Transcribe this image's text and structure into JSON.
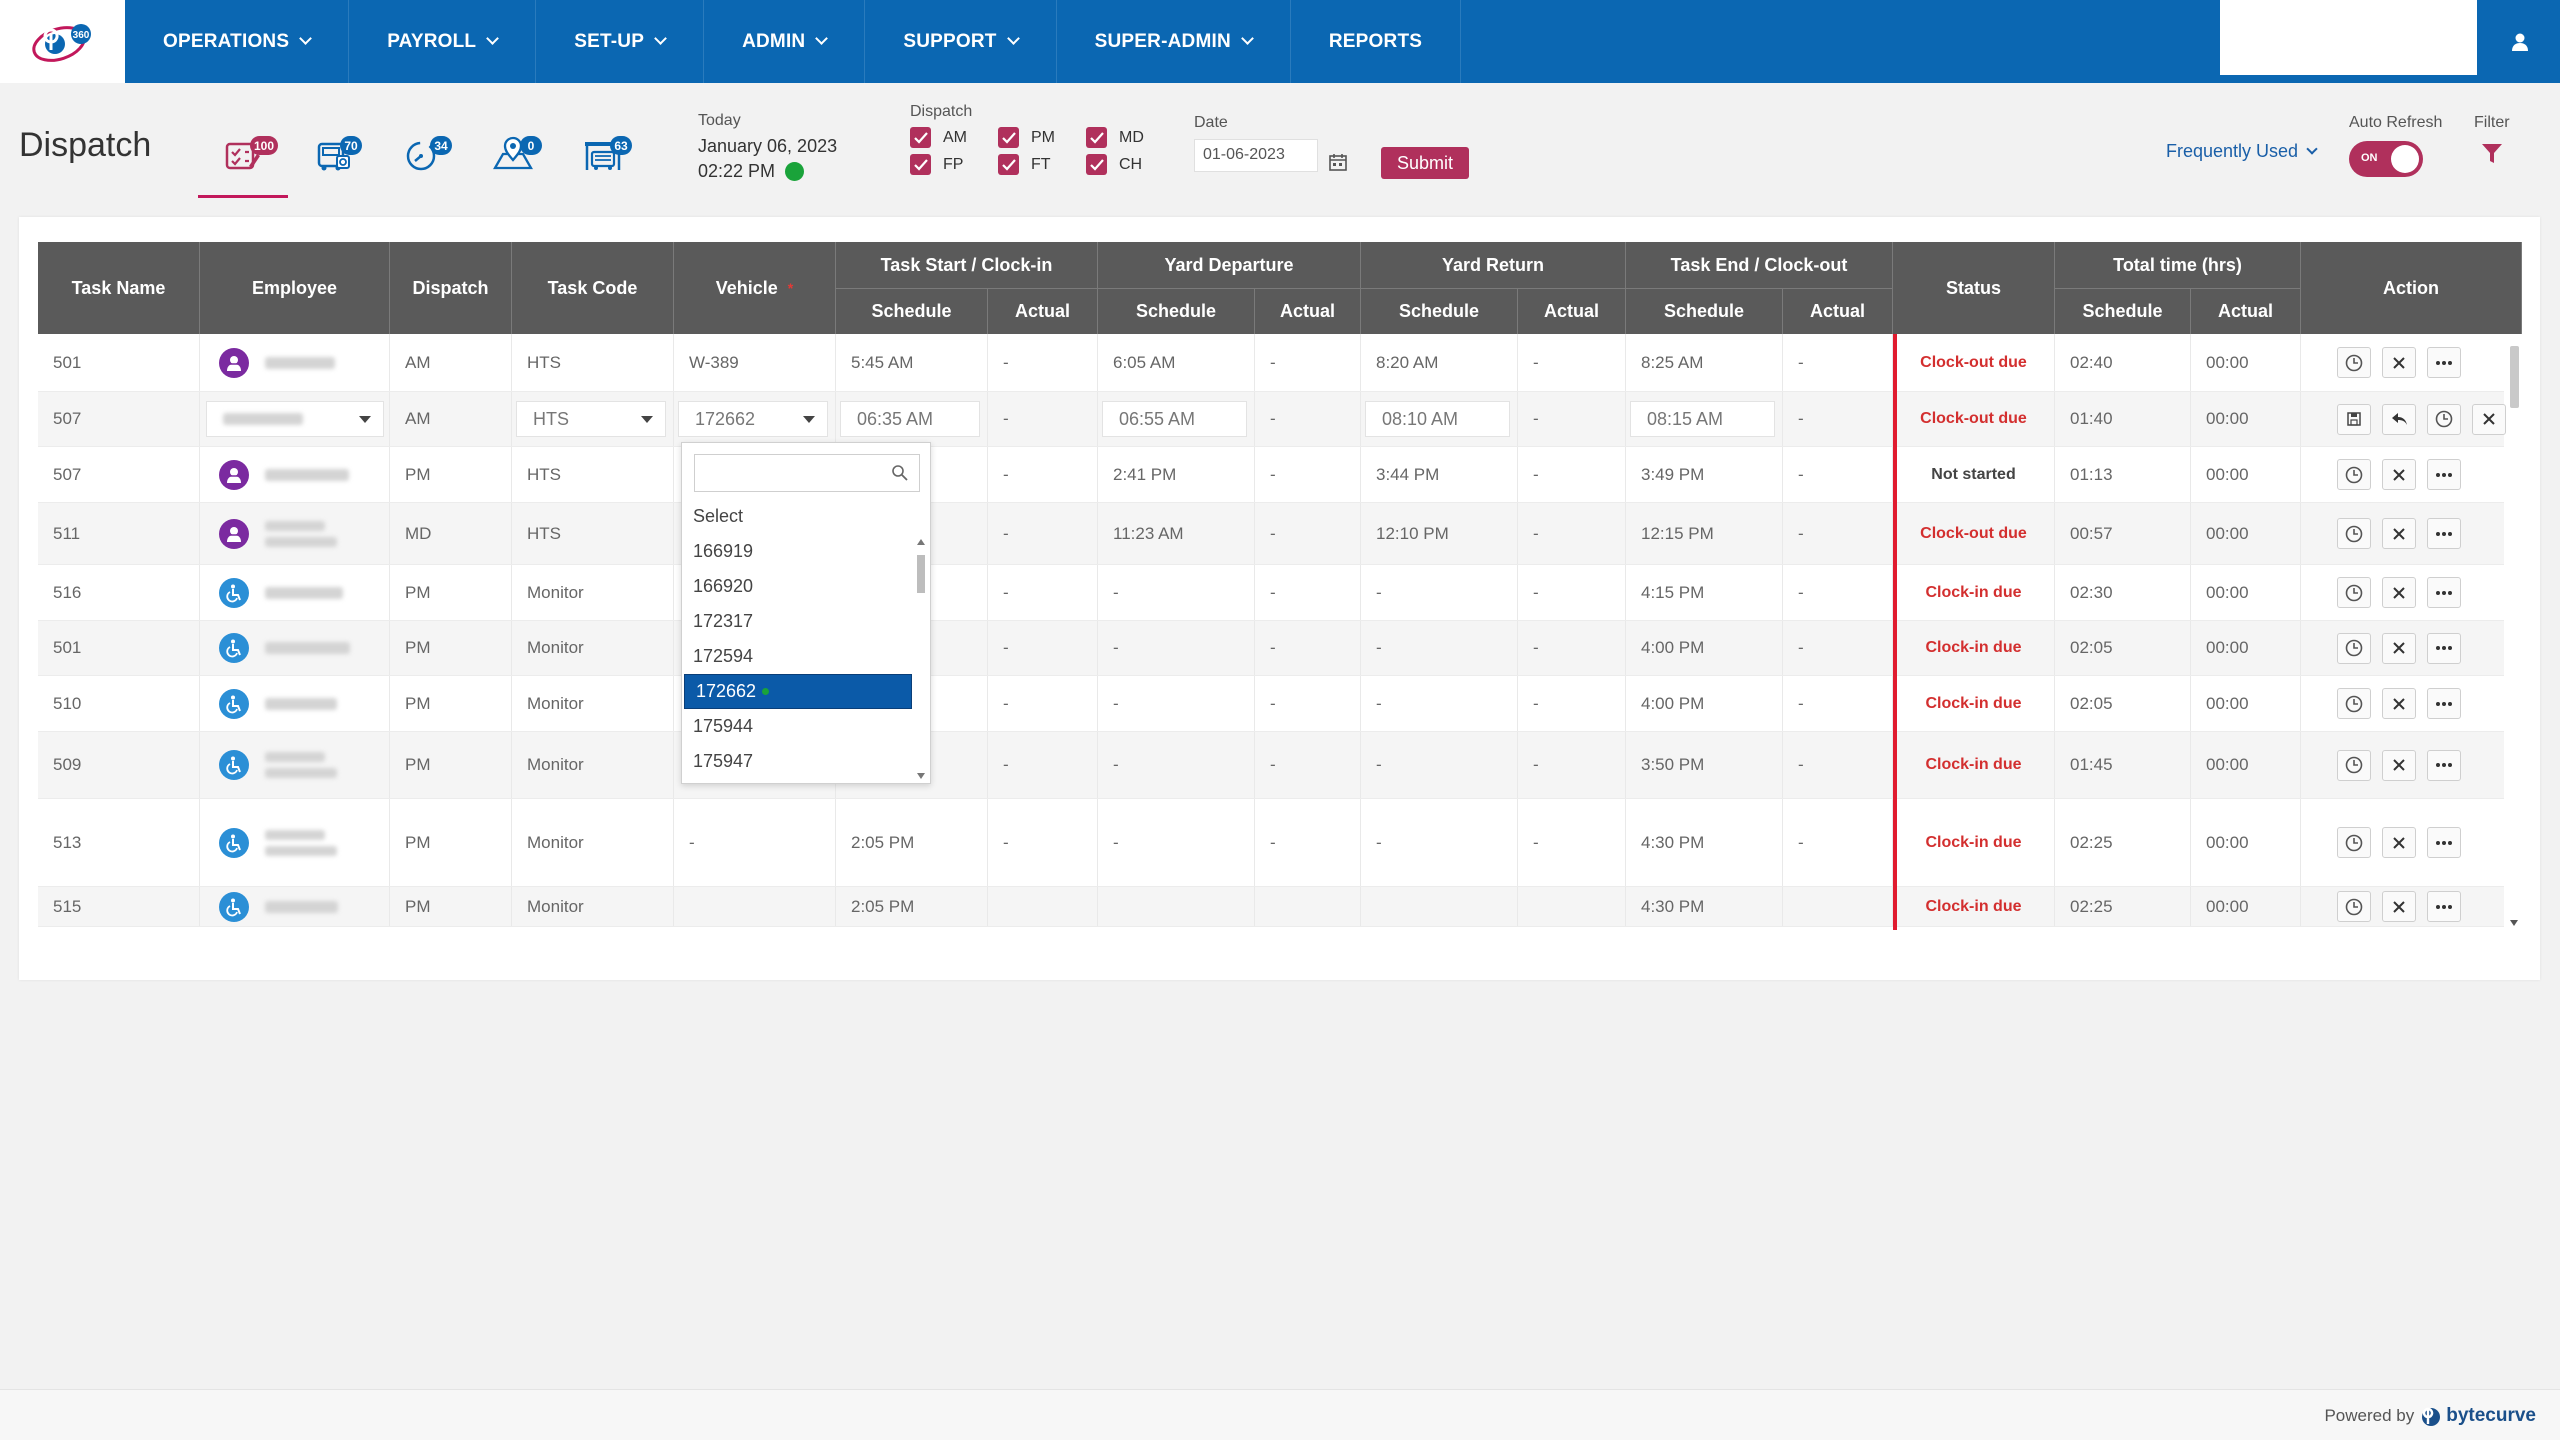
{
  "nav": {
    "items": [
      {
        "label": "OPERATIONS",
        "has_menu": true
      },
      {
        "label": "PAYROLL",
        "has_menu": true
      },
      {
        "label": "SET-UP",
        "has_menu": true
      },
      {
        "label": "ADMIN",
        "has_menu": true
      },
      {
        "label": "SUPPORT",
        "has_menu": true
      },
      {
        "label": "SUPER-ADMIN",
        "has_menu": true
      },
      {
        "label": "REPORTS",
        "has_menu": false
      }
    ],
    "logo_text": "360",
    "color": "#0b67b2"
  },
  "header": {
    "title": "Dispatch",
    "quick_icons": [
      {
        "icon": "checklist-icon",
        "badge": "100",
        "badge_color": "#b0305c"
      },
      {
        "icon": "bus-icon",
        "badge": "70",
        "badge_color": "#0b67b2"
      },
      {
        "icon": "timer-icon",
        "badge": "34",
        "badge_color": "#0b67b2"
      },
      {
        "icon": "map-pin-icon",
        "badge": "0",
        "badge_color": "#0b67b2"
      },
      {
        "icon": "garage-icon",
        "badge": "63",
        "badge_color": "#0b67b2"
      }
    ],
    "today_label": "Today",
    "today_date": "January 06, 2023",
    "today_time": "02:22 PM",
    "dispatch_label": "Dispatch",
    "dispatch_options": [
      "AM",
      "PM",
      "MD",
      "FP",
      "FT",
      "CH"
    ],
    "date_label": "Date",
    "date_value": "01-06-2023",
    "submit_label": "Submit",
    "frequently_used": "Frequently Used",
    "auto_refresh_label": "Auto Refresh",
    "auto_refresh_state": "ON",
    "filter_label": "Filter",
    "accent": "#b0305c"
  },
  "table": {
    "headers": {
      "task_name": "Task Name",
      "employee": "Employee",
      "dispatch": "Dispatch",
      "task_code": "Task Code",
      "vehicle": "Vehicle",
      "task_start": "Task Start / Clock-in",
      "yard_departure": "Yard Departure",
      "yard_return": "Yard Return",
      "task_end": "Task End / Clock-out",
      "status": "Status",
      "total_time": "Total time (hrs)",
      "action": "Action",
      "schedule": "Schedule",
      "actual": "Actual"
    },
    "rows": [
      {
        "task": "501",
        "emp_type": "purple",
        "dispatch": "AM",
        "code": "HTS",
        "vehicle": "W-389",
        "start_s": "5:45 AM",
        "start_a": "-",
        "ydep_s": "6:05 AM",
        "ydep_a": "-",
        "yret_s": "8:20 AM",
        "yret_a": "-",
        "end_s": "8:25 AM",
        "end_a": "-",
        "status": "Clock-out due",
        "tot_s": "02:40",
        "tot_a": "00:00"
      },
      {
        "task": "507",
        "emp_type": "edit",
        "dispatch": "AM",
        "code": "HTS",
        "vehicle": "172662",
        "start_s": "06:35 AM",
        "start_a": "-",
        "ydep_s": "06:55 AM",
        "ydep_a": "-",
        "yret_s": "08:10 AM",
        "yret_a": "-",
        "end_s": "08:15 AM",
        "end_a": "-",
        "status": "Clock-out due",
        "tot_s": "01:40",
        "tot_a": "00:00"
      },
      {
        "task": "507",
        "emp_type": "purple",
        "dispatch": "PM",
        "code": "HTS",
        "vehicle": "",
        "start_s": "",
        "start_a": "-",
        "ydep_s": "2:41 PM",
        "ydep_a": "-",
        "yret_s": "3:44 PM",
        "yret_a": "-",
        "end_s": "3:49 PM",
        "end_a": "-",
        "status": "Not started",
        "tot_s": "01:13",
        "tot_a": "00:00"
      },
      {
        "task": "511",
        "emp_type": "purple",
        "dispatch": "MD",
        "code": "HTS",
        "vehicle": "",
        "start_s": "",
        "start_a": "-",
        "ydep_s": "11:23 AM",
        "ydep_a": "-",
        "yret_s": "12:10 PM",
        "yret_a": "-",
        "end_s": "12:15 PM",
        "end_a": "-",
        "status": "Clock-out due",
        "tot_s": "00:57",
        "tot_a": "00:00"
      },
      {
        "task": "516",
        "emp_type": "blue",
        "dispatch": "PM",
        "code": "Monitor",
        "vehicle": "",
        "start_s": "",
        "start_a": "-",
        "ydep_s": "-",
        "ydep_a": "-",
        "yret_s": "-",
        "yret_a": "-",
        "end_s": "4:15 PM",
        "end_a": "-",
        "status": "Clock-in due",
        "tot_s": "02:30",
        "tot_a": "00:00"
      },
      {
        "task": "501",
        "emp_type": "blue",
        "dispatch": "PM",
        "code": "Monitor",
        "vehicle": "",
        "start_s": "",
        "start_a": "-",
        "ydep_s": "-",
        "ydep_a": "-",
        "yret_s": "-",
        "yret_a": "-",
        "end_s": "4:00 PM",
        "end_a": "-",
        "status": "Clock-in due",
        "tot_s": "02:05",
        "tot_a": "00:00"
      },
      {
        "task": "510",
        "emp_type": "blue",
        "dispatch": "PM",
        "code": "Monitor",
        "vehicle": "",
        "start_s": "",
        "start_a": "-",
        "ydep_s": "-",
        "ydep_a": "-",
        "yret_s": "-",
        "yret_a": "-",
        "end_s": "4:00 PM",
        "end_a": "-",
        "status": "Clock-in due",
        "tot_s": "02:05",
        "tot_a": "00:00"
      },
      {
        "task": "509",
        "emp_type": "blue",
        "dispatch": "PM",
        "code": "Monitor",
        "vehicle": "",
        "start_s": "",
        "start_a": "-",
        "ydep_s": "-",
        "ydep_a": "-",
        "yret_s": "-",
        "yret_a": "-",
        "end_s": "3:50 PM",
        "end_a": "-",
        "status": "Clock-in due",
        "tot_s": "01:45",
        "tot_a": "00:00"
      },
      {
        "task": "513",
        "emp_type": "blue",
        "dispatch": "PM",
        "code": "Monitor",
        "vehicle": "-",
        "start_s": "2:05 PM",
        "start_a": "-",
        "ydep_s": "-",
        "ydep_a": "-",
        "yret_s": "-",
        "yret_a": "-",
        "end_s": "4:30 PM",
        "end_a": "-",
        "status": "Clock-in due",
        "tot_s": "02:25",
        "tot_a": "00:00"
      },
      {
        "task": "515",
        "emp_type": "blue",
        "dispatch": "PM",
        "code": "Monitor",
        "vehicle": "",
        "start_s": "2:05 PM",
        "start_a": "",
        "ydep_s": "",
        "ydep_a": "",
        "yret_s": "",
        "yret_a": "",
        "end_s": "4:30 PM",
        "end_a": "",
        "status": "Clock-in due",
        "tot_s": "02:25",
        "tot_a": "00:00"
      }
    ],
    "status_colors": {
      "due": "#d32f2f",
      "not_started": "#444444"
    }
  },
  "vehicle_dropdown": {
    "search_value": "",
    "options": [
      "Select",
      "166919",
      "166920",
      "172317",
      "172594",
      "172662",
      "175944",
      "175947"
    ],
    "selected": "172662"
  },
  "footer": {
    "powered_by": "Powered by",
    "brand": "bytecurve"
  }
}
